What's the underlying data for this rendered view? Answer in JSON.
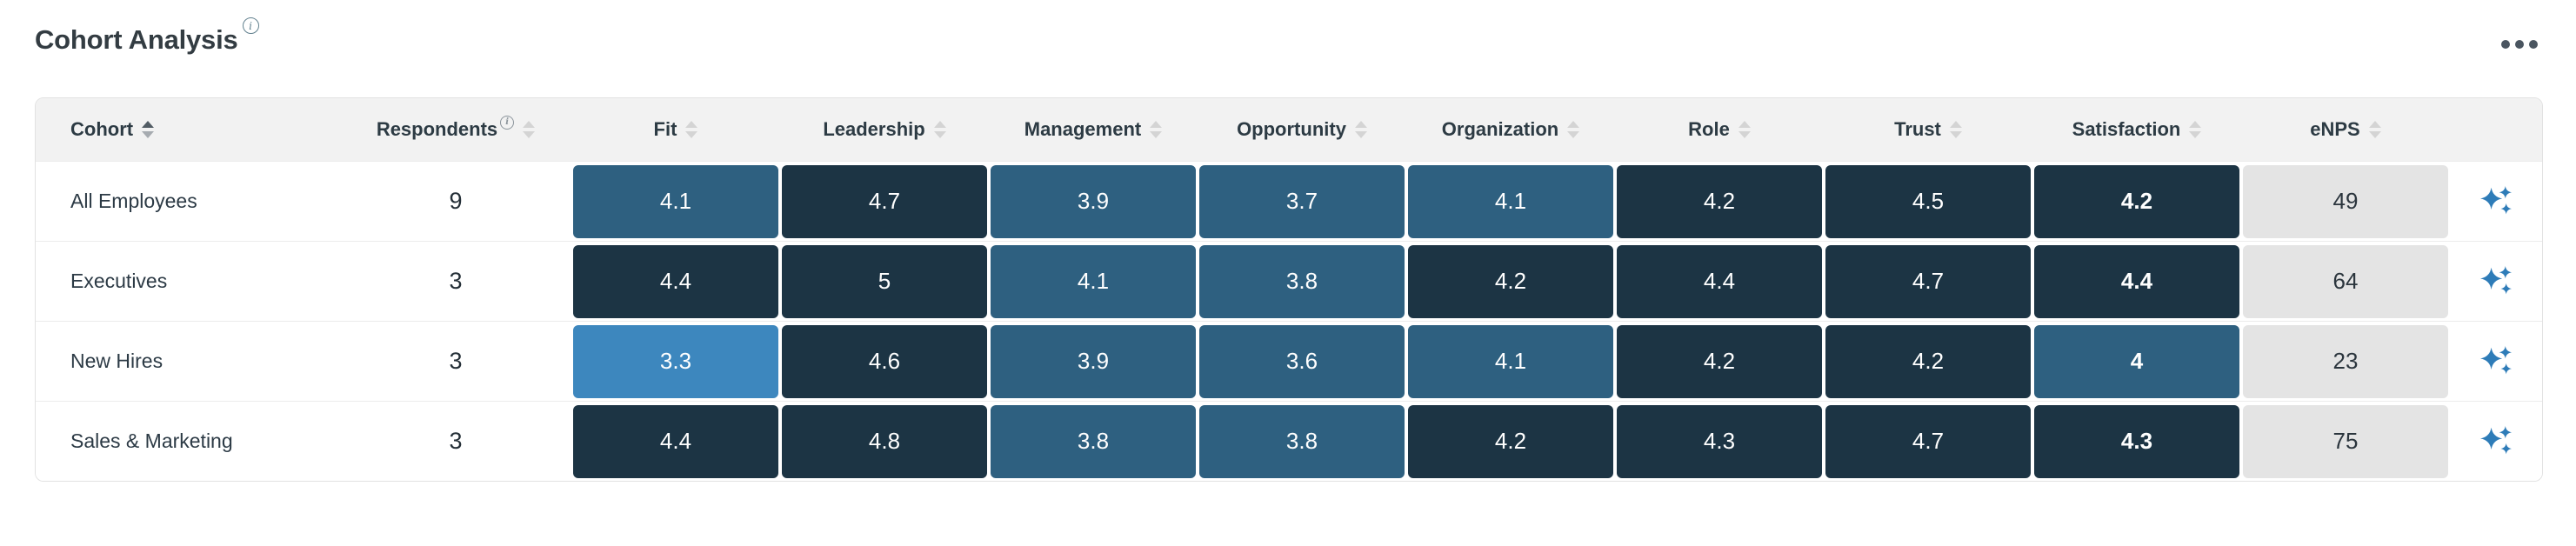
{
  "card": {
    "title": "Cohort Analysis",
    "title_info": "i",
    "menu": "ellipsis-menu"
  },
  "table": {
    "columns": [
      {
        "key": "cohort",
        "label": "Cohort",
        "type": "text",
        "align": "left",
        "sortable": true,
        "sorted": "asc"
      },
      {
        "key": "respondents",
        "label": "Respondents",
        "type": "number",
        "sortable": true,
        "info": true
      },
      {
        "key": "fit",
        "label": "Fit",
        "type": "score",
        "sortable": true
      },
      {
        "key": "leadership",
        "label": "Leadership",
        "type": "score",
        "sortable": true
      },
      {
        "key": "management",
        "label": "Management",
        "type": "score",
        "sortable": true
      },
      {
        "key": "opportunity",
        "label": "Opportunity",
        "type": "score",
        "sortable": true
      },
      {
        "key": "organization",
        "label": "Organization",
        "type": "score",
        "sortable": true
      },
      {
        "key": "role",
        "label": "Role",
        "type": "score",
        "sortable": true
      },
      {
        "key": "trust",
        "label": "Trust",
        "type": "score",
        "sortable": true
      },
      {
        "key": "satisfaction",
        "label": "Satisfaction",
        "type": "score",
        "sortable": true,
        "bold": true
      },
      {
        "key": "enps",
        "label": "eNPS",
        "type": "enps",
        "sortable": true
      },
      {
        "key": "actions",
        "label": "",
        "type": "action"
      }
    ],
    "rows": [
      {
        "cohort": "All Employees",
        "respondents": 9,
        "fit": 4.1,
        "leadership": 4.7,
        "management": 3.9,
        "opportunity": 3.7,
        "organization": 4.1,
        "role": 4.2,
        "trust": 4.5,
        "satisfaction": 4.2,
        "enps": 49
      },
      {
        "cohort": "Executives",
        "respondents": 3,
        "fit": 4.4,
        "leadership": 5,
        "management": 4.1,
        "opportunity": 3.8,
        "organization": 4.2,
        "role": 4.4,
        "trust": 4.7,
        "satisfaction": 4.4,
        "enps": 64
      },
      {
        "cohort": "New Hires",
        "respondents": 3,
        "fit": 3.3,
        "leadership": 4.6,
        "management": 3.9,
        "opportunity": 3.6,
        "organization": 4.1,
        "role": 4.2,
        "trust": 4.2,
        "satisfaction": 4,
        "enps": 23
      },
      {
        "cohort": "Sales & Marketing",
        "respondents": 3,
        "fit": 4.4,
        "leadership": 4.8,
        "management": 3.8,
        "opportunity": 3.8,
        "organization": 4.2,
        "role": 4.3,
        "trust": 4.7,
        "satisfaction": 4.3,
        "enps": 75
      }
    ]
  },
  "heatmap": {
    "colors": {
      "high": "#1c3444",
      "mid": "#2e6080",
      "low": "#3d87be"
    },
    "thresholds": {
      "high_min": 4.2,
      "low_max": 3.3
    },
    "text_color": "#ffffff"
  },
  "enps_style": {
    "bg": "#e4e4e4",
    "text_color": "#2b353d"
  },
  "accent": {
    "sparkle_color": "#2e7cb8",
    "menu_dot_color": "#4a5560"
  }
}
